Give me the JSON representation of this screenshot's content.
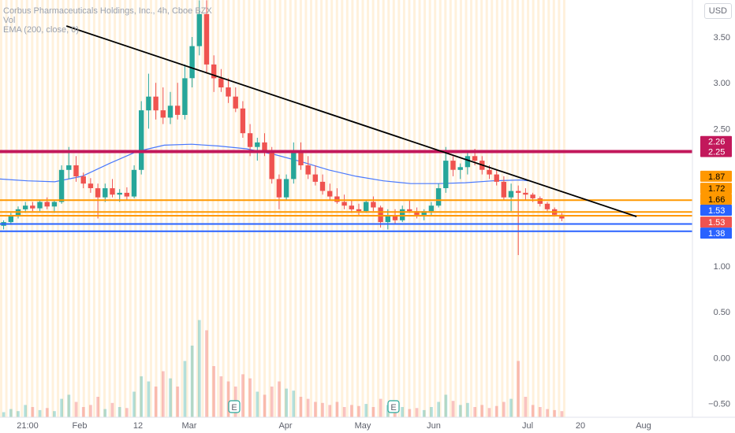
{
  "legend": {
    "title": "Corbus Pharmaceuticals Holdings, Inc., 4h, Cboe BZX",
    "vol": "Vol",
    "ema": "EMA (200, close, 0)"
  },
  "currency": "USD",
  "colors": {
    "up": "#26a69a",
    "down": "#ef5350",
    "ema": "#2962ff",
    "trendline": "#000000",
    "crimson": "#c2185b",
    "orange": "#ff9800",
    "blue": "#2962ff",
    "vband": "#ffe0b2"
  },
  "chart_data": {
    "type": "candlestick",
    "y_ticks": [
      "3.50",
      "3.00",
      "2.50",
      "1.00",
      "0.50",
      "0.00",
      "−0.50"
    ],
    "ylim": [
      -0.6,
      3.85
    ],
    "x_ticks": [
      "21:00",
      "Feb",
      "12",
      "Mar",
      "Apr",
      "May",
      "Jun",
      "Jul",
      "20",
      "Aug"
    ],
    "horizontal_levels": [
      {
        "value": 2.25,
        "label": "2.25",
        "color": "#c2185b"
      },
      {
        "value": 1.72,
        "label": "1.72",
        "color": "#ff9800"
      },
      {
        "value": 1.59,
        "label": "",
        "color": "#ff9800"
      },
      {
        "value": 1.55,
        "label": "",
        "color": "#ff9800"
      },
      {
        "value": 1.46,
        "label": "",
        "color": "#2962ff"
      },
      {
        "value": 1.38,
        "label": "1.38",
        "color": "#2962ff"
      }
    ],
    "price_badges": [
      {
        "label": "2.26",
        "value": 2.36,
        "color": "#c2185b"
      },
      {
        "label": "2.25",
        "value": 2.25,
        "color": "#c2185b"
      },
      {
        "label": "1.87",
        "value": 1.98,
        "color": "#ff9800"
      },
      {
        "label": "1.72",
        "value": 1.85,
        "color": "#ff9800"
      },
      {
        "label": "1.66",
        "value": 1.73,
        "color": "#ff9800"
      },
      {
        "label": "1.53",
        "value": 1.61,
        "color": "#2962ff"
      },
      {
        "label": "1.53",
        "value": 1.48,
        "color": "#ef5350"
      },
      {
        "label": "1.38",
        "value": 1.36,
        "color": "#2962ff"
      }
    ],
    "trendline": {
      "start": [
        0.097,
        3.62
      ],
      "end": [
        0.93,
        1.54
      ]
    },
    "earnings_markers": [
      "E",
      "E"
    ],
    "candles": [
      [
        1.44,
        1.5,
        1.4,
        1.48
      ],
      [
        1.48,
        1.58,
        1.45,
        1.55
      ],
      [
        1.55,
        1.65,
        1.52,
        1.62
      ],
      [
        1.62,
        1.7,
        1.58,
        1.66
      ],
      [
        1.66,
        1.7,
        1.6,
        1.63
      ],
      [
        1.63,
        1.72,
        1.6,
        1.7
      ],
      [
        1.7,
        1.75,
        1.62,
        1.65
      ],
      [
        1.65,
        1.72,
        1.58,
        1.7
      ],
      [
        1.7,
        2.1,
        1.68,
        2.05
      ],
      [
        2.05,
        2.3,
        1.95,
        2.1
      ],
      [
        2.1,
        2.2,
        1.92,
        1.98
      ],
      [
        1.98,
        2.02,
        1.85,
        1.9
      ],
      [
        1.9,
        1.96,
        1.8,
        1.85
      ],
      [
        1.85,
        1.9,
        1.52,
        1.75
      ],
      [
        1.75,
        1.9,
        1.7,
        1.85
      ],
      [
        1.85,
        1.95,
        1.75,
        1.78
      ],
      [
        1.78,
        1.84,
        1.7,
        1.8
      ],
      [
        1.8,
        1.86,
        1.72,
        1.76
      ],
      [
        1.76,
        2.1,
        1.74,
        2.05
      ],
      [
        2.05,
        2.8,
        2.0,
        2.7
      ],
      [
        2.7,
        3.1,
        2.5,
        2.85
      ],
      [
        2.85,
        3.0,
        2.6,
        2.7
      ],
      [
        2.7,
        2.95,
        2.55,
        2.62
      ],
      [
        2.62,
        2.9,
        2.55,
        2.75
      ],
      [
        2.75,
        3.0,
        2.6,
        2.65
      ],
      [
        2.65,
        3.2,
        2.6,
        3.05
      ],
      [
        3.05,
        3.5,
        2.95,
        3.4
      ],
      [
        3.4,
        3.9,
        3.3,
        3.75
      ],
      [
        3.75,
        3.9,
        3.1,
        3.2
      ],
      [
        3.2,
        3.3,
        2.9,
        3.05
      ],
      [
        3.05,
        3.15,
        2.9,
        2.95
      ],
      [
        2.95,
        3.05,
        2.78,
        2.85
      ],
      [
        2.85,
        2.95,
        2.68,
        2.72
      ],
      [
        2.72,
        2.8,
        2.4,
        2.45
      ],
      [
        2.45,
        2.55,
        2.2,
        2.3
      ],
      [
        2.3,
        2.4,
        2.15,
        2.35
      ],
      [
        2.35,
        2.45,
        2.2,
        2.25
      ],
      [
        2.25,
        2.3,
        1.9,
        1.95
      ],
      [
        1.95,
        2.0,
        1.62,
        1.75
      ],
      [
        1.75,
        2.0,
        1.72,
        1.95
      ],
      [
        1.95,
        2.35,
        1.9,
        2.25
      ],
      [
        2.25,
        2.35,
        2.05,
        2.1
      ],
      [
        2.1,
        2.2,
        1.95,
        2.0
      ],
      [
        2.0,
        2.1,
        1.88,
        1.92
      ],
      [
        1.92,
        2.0,
        1.78,
        1.82
      ],
      [
        1.82,
        1.9,
        1.72,
        1.76
      ],
      [
        1.76,
        1.85,
        1.68,
        1.7
      ],
      [
        1.7,
        1.78,
        1.62,
        1.66
      ],
      [
        1.66,
        1.72,
        1.58,
        1.62
      ],
      [
        1.62,
        1.68,
        1.55,
        1.6
      ],
      [
        1.6,
        1.72,
        1.58,
        1.7
      ],
      [
        1.7,
        1.76,
        1.6,
        1.64
      ],
      [
        1.64,
        1.66,
        1.42,
        1.48
      ],
      [
        1.48,
        1.62,
        1.4,
        1.55
      ],
      [
        1.55,
        1.62,
        1.46,
        1.5
      ],
      [
        1.5,
        1.66,
        1.48,
        1.62
      ],
      [
        1.62,
        1.72,
        1.58,
        1.6
      ],
      [
        1.6,
        1.64,
        1.52,
        1.56
      ],
      [
        1.56,
        1.62,
        1.5,
        1.6
      ],
      [
        1.6,
        1.7,
        1.55,
        1.66
      ],
      [
        1.66,
        1.9,
        1.64,
        1.85
      ],
      [
        1.85,
        2.3,
        1.8,
        2.15
      ],
      [
        2.15,
        2.2,
        1.98,
        2.05
      ],
      [
        2.05,
        2.12,
        1.95,
        2.08
      ],
      [
        2.08,
        2.25,
        2.0,
        2.2
      ],
      [
        2.2,
        2.28,
        2.1,
        2.15
      ],
      [
        2.15,
        2.2,
        2.0,
        2.05
      ],
      [
        2.05,
        2.1,
        1.95,
        2.0
      ],
      [
        2.0,
        2.05,
        1.88,
        1.92
      ],
      [
        1.92,
        1.98,
        1.72,
        1.75
      ],
      [
        1.75,
        1.9,
        1.6,
        1.82
      ],
      [
        1.82,
        1.88,
        1.12,
        1.8
      ],
      [
        1.8,
        1.85,
        1.72,
        1.78
      ],
      [
        1.78,
        1.8,
        1.7,
        1.74
      ],
      [
        1.74,
        1.76,
        1.65,
        1.68
      ],
      [
        1.68,
        1.7,
        1.6,
        1.62
      ],
      [
        1.62,
        1.64,
        1.54,
        1.56
      ],
      [
        1.56,
        1.58,
        1.49,
        1.52
      ]
    ],
    "ema_points": [
      [
        0.0,
        1.95
      ],
      [
        0.04,
        1.93
      ],
      [
        0.08,
        1.92
      ],
      [
        0.12,
        1.98
      ],
      [
        0.16,
        2.12
      ],
      [
        0.2,
        2.25
      ],
      [
        0.24,
        2.32
      ],
      [
        0.28,
        2.33
      ],
      [
        0.32,
        2.31
      ],
      [
        0.36,
        2.28
      ],
      [
        0.4,
        2.22
      ],
      [
        0.44,
        2.14
      ],
      [
        0.48,
        2.05
      ],
      [
        0.52,
        1.98
      ],
      [
        0.56,
        1.93
      ],
      [
        0.6,
        1.9
      ],
      [
        0.64,
        1.9
      ],
      [
        0.68,
        1.91
      ],
      [
        0.72,
        1.93
      ],
      [
        0.76,
        1.94
      ],
      [
        0.772,
        1.93
      ]
    ],
    "volumes": [
      0.05,
      0.08,
      0.06,
      0.12,
      0.1,
      0.07,
      0.09,
      0.06,
      0.18,
      0.22,
      0.15,
      0.1,
      0.12,
      0.2,
      0.08,
      0.14,
      0.1,
      0.09,
      0.25,
      0.4,
      0.35,
      0.3,
      0.45,
      0.38,
      0.3,
      0.55,
      0.7,
      0.95,
      0.85,
      0.5,
      0.4,
      0.35,
      0.3,
      0.42,
      0.38,
      0.25,
      0.22,
      0.3,
      0.35,
      0.28,
      0.26,
      0.2,
      0.18,
      0.15,
      0.14,
      0.12,
      0.15,
      0.1,
      0.12,
      0.11,
      0.13,
      0.1,
      0.18,
      0.12,
      0.09,
      0.1,
      0.08,
      0.09,
      0.07,
      0.1,
      0.15,
      0.22,
      0.16,
      0.12,
      0.14,
      0.1,
      0.12,
      0.09,
      0.11,
      0.15,
      0.18,
      0.55,
      0.2,
      0.12,
      0.1,
      0.08,
      0.07,
      0.06
    ]
  }
}
